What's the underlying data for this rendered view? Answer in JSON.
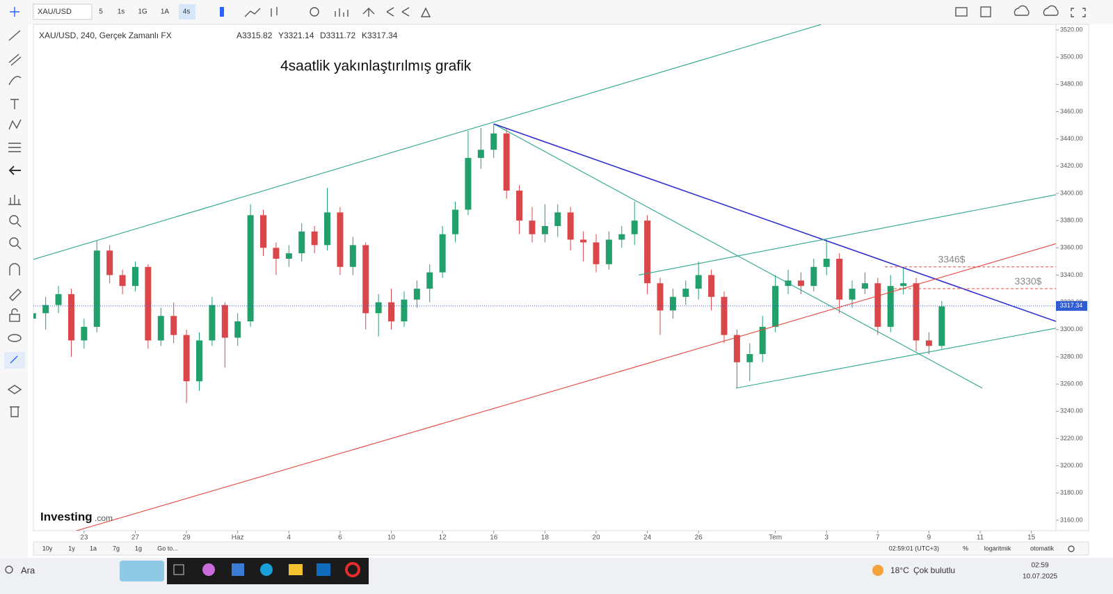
{
  "toolbar": {
    "symbol": "XAU/USD",
    "intervals": [
      "5",
      "1s",
      "1G",
      "1A",
      "4s"
    ]
  },
  "legend": {
    "title": "XAU/USD, 240, Gerçek Zamanlı FX",
    "ohlc": [
      "A3315.82",
      "Y3321.14",
      "D3311.72",
      "K3317.34"
    ]
  },
  "annotation": "4saatlik yakınlaştırılmış grafik",
  "watermark": [
    "Investing",
    ".com"
  ],
  "chart_data": {
    "type": "candlestick",
    "x": [
      -2,
      -1.5,
      -1,
      -0.5,
      0,
      0.5,
      1,
      1.5,
      2,
      2.5,
      3,
      3.5,
      4,
      4.5,
      5,
      5.5,
      6,
      6.5,
      7,
      7.5,
      8,
      8.5,
      9,
      9.5,
      10,
      10.5,
      11,
      11.5,
      12,
      12.5,
      13,
      13.5,
      14,
      14.5,
      15,
      15.5,
      16,
      16.5,
      17,
      17.5,
      18,
      18.5,
      19,
      19.5,
      20,
      20.5,
      21,
      21.5,
      22,
      22.5,
      23,
      23.5,
      24,
      24.5,
      25,
      25.5,
      26,
      26.5,
      27,
      27.5,
      28,
      28.5,
      29,
      29.5,
      30,
      30.5,
      31,
      31.5,
      32,
      32.5,
      33,
      33.5
    ],
    "open": [
      3308,
      3312,
      3318,
      3326,
      3292,
      3302,
      3358,
      3340,
      3332,
      3346,
      3292,
      3310,
      3296,
      3262,
      3292,
      3318,
      3294,
      3306,
      3384,
      3360,
      3352,
      3356,
      3372,
      3362,
      3386,
      3346,
      3362,
      3312,
      3320,
      3306,
      3322,
      3330,
      3342,
      3370,
      3388,
      3426,
      3432,
      3444,
      3402,
      3380,
      3370,
      3376,
      3386,
      3366,
      3364,
      3348,
      3366,
      3370,
      3380,
      3334,
      3314,
      3324,
      3330,
      3340,
      3324,
      3296,
      3276,
      3282,
      3302,
      3332,
      3336,
      3332,
      3346,
      3352,
      3322,
      3330,
      3334,
      3302,
      3332,
      3334,
      3292,
      3288
    ],
    "high": [
      3318,
      3324,
      3332,
      3330,
      3308,
      3365,
      3362,
      3344,
      3350,
      3348,
      3316,
      3320,
      3300,
      3298,
      3324,
      3320,
      3312,
      3392,
      3388,
      3364,
      3362,
      3378,
      3376,
      3404,
      3390,
      3368,
      3364,
      3326,
      3330,
      3328,
      3336,
      3348,
      3376,
      3394,
      3446,
      3448,
      3451,
      3448,
      3406,
      3390,
      3392,
      3392,
      3390,
      3372,
      3370,
      3372,
      3376,
      3394,
      3384,
      3338,
      3330,
      3336,
      3350,
      3344,
      3328,
      3300,
      3290,
      3310,
      3340,
      3344,
      3342,
      3352,
      3366,
      3356,
      3336,
      3342,
      3338,
      3340,
      3346,
      3338,
      3298,
      3321
    ],
    "low": [
      3298,
      3300,
      3312,
      3280,
      3286,
      3298,
      3334,
      3326,
      3328,
      3286,
      3288,
      3290,
      3246,
      3255,
      3288,
      3272,
      3288,
      3302,
      3354,
      3340,
      3346,
      3350,
      3356,
      3358,
      3340,
      3340,
      3300,
      3295,
      3300,
      3302,
      3316,
      3320,
      3338,
      3364,
      3384,
      3418,
      3426,
      3396,
      3370,
      3364,
      3364,
      3368,
      3358,
      3350,
      3342,
      3344,
      3360,
      3362,
      3326,
      3296,
      3308,
      3318,
      3322,
      3314,
      3290,
      3257,
      3262,
      3276,
      3298,
      3326,
      3326,
      3328,
      3340,
      3312,
      3316,
      3326,
      3296,
      3298,
      3326,
      3284,
      3282,
      3286
    ],
    "close": [
      3312,
      3318,
      3326,
      3292,
      3302,
      3358,
      3340,
      3332,
      3346,
      3292,
      3310,
      3296,
      3262,
      3292,
      3318,
      3294,
      3306,
      3384,
      3360,
      3352,
      3356,
      3372,
      3362,
      3386,
      3346,
      3362,
      3312,
      3320,
      3306,
      3322,
      3330,
      3342,
      3370,
      3388,
      3426,
      3432,
      3444,
      3402,
      3380,
      3370,
      3376,
      3386,
      3366,
      3364,
      3348,
      3366,
      3370,
      3380,
      3334,
      3314,
      3324,
      3330,
      3340,
      3324,
      3296,
      3276,
      3282,
      3302,
      3332,
      3336,
      3332,
      3346,
      3352,
      3322,
      3330,
      3334,
      3302,
      3332,
      3334,
      3292,
      3288,
      3317
    ],
    "up_color": "#22a06b",
    "down_color": "#d9474a",
    "xlim": [
      -1.98,
      37.96
    ],
    "ylim": [
      3152.3,
      3524.1
    ],
    "xticks": [
      {
        "value": 0,
        "label": "23"
      },
      {
        "value": 2,
        "label": "27"
      },
      {
        "value": 4,
        "label": "29"
      },
      {
        "value": 6,
        "label": "Haz"
      },
      {
        "value": 8,
        "label": "4"
      },
      {
        "value": 10,
        "label": "6"
      },
      {
        "value": 12,
        "label": "10"
      },
      {
        "value": 14,
        "label": "12"
      },
      {
        "value": 16,
        "label": "16"
      },
      {
        "value": 18,
        "label": "18"
      },
      {
        "value": 20,
        "label": "20"
      },
      {
        "value": 22,
        "label": "24"
      },
      {
        "value": 24,
        "label": "26"
      },
      {
        "value": 27,
        "label": "Tem"
      },
      {
        "value": 29,
        "label": "3"
      },
      {
        "value": 31,
        "label": "7"
      },
      {
        "value": 33,
        "label": "9"
      },
      {
        "value": 35,
        "label": "11"
      },
      {
        "value": 37,
        "label": "15"
      }
    ],
    "yticks": [
      {
        "value": 3160,
        "label": "3160.00"
      },
      {
        "value": 3180,
        "label": "3180.00"
      },
      {
        "value": 3200,
        "label": "3200.00"
      },
      {
        "value": 3220,
        "label": "3220.00"
      },
      {
        "value": 3240,
        "label": "3240.00"
      },
      {
        "value": 3260,
        "label": "3260.00"
      },
      {
        "value": 3280,
        "label": "3280.00"
      },
      {
        "value": 3300,
        "label": "3300.00"
      },
      {
        "value": 3320,
        "label": "3320.00"
      },
      {
        "value": 3340,
        "label": "3340.00"
      },
      {
        "value": 3360,
        "label": "3360.00"
      },
      {
        "value": 3380,
        "label": "3380.00"
      },
      {
        "value": 3400,
        "label": "3400.00"
      },
      {
        "value": 3420,
        "label": "3420.00"
      },
      {
        "value": 3440,
        "label": "3440.00"
      },
      {
        "value": 3460,
        "label": "3460.00"
      },
      {
        "value": 3480,
        "label": "3480.00"
      },
      {
        "value": 3500,
        "label": "3500.00"
      },
      {
        "value": 3520,
        "label": "3520.00"
      }
    ],
    "last_price": 3317.34,
    "trendlines": [
      {
        "x": [
          -1.98,
          28.78
        ],
        "y": [
          3351.5,
          3524
        ],
        "color": "#2aa58c"
      },
      {
        "x": [
          16,
          35.08
        ],
        "y": [
          3451,
          3257
        ],
        "color": "#2aa58c"
      },
      {
        "x": [
          16,
          37.96
        ],
        "y": [
          3451,
          3306
        ],
        "color": "#2b2bd0"
      },
      {
        "x": [
          25.46,
          37.96
        ],
        "y": [
          3257,
          3301
        ],
        "color": "#2aa58c"
      },
      {
        "x": [
          21.66,
          37.96
        ],
        "y": [
          3340,
          3399
        ],
        "color": "#2aa58c"
      },
      {
        "x": [
          -0.35,
          37.96
        ],
        "y": [
          3152,
          3363
        ],
        "color": "#e8433a"
      }
    ],
    "levels": [
      {
        "value": 3346,
        "label": "3346$",
        "x_start": 31.28,
        "color": "#e8433a"
      },
      {
        "value": 3330,
        "label": "3330$",
        "x_start": 31.63,
        "color": "#e8433a"
      }
    ]
  },
  "bottom_bar": {
    "ranges": [
      "10y",
      "1y",
      "1a",
      "7g",
      "1g",
      "Go to..."
    ],
    "clock": "02:59:01 (UTC+3)",
    "options": [
      "%",
      "logaritmik",
      "otomatik"
    ]
  },
  "taskbar": {
    "search": "Ara",
    "weather_temp": "18°C",
    "weather_text": "Çok bulutlu",
    "time": "02:59",
    "date": "10.07.2025"
  }
}
